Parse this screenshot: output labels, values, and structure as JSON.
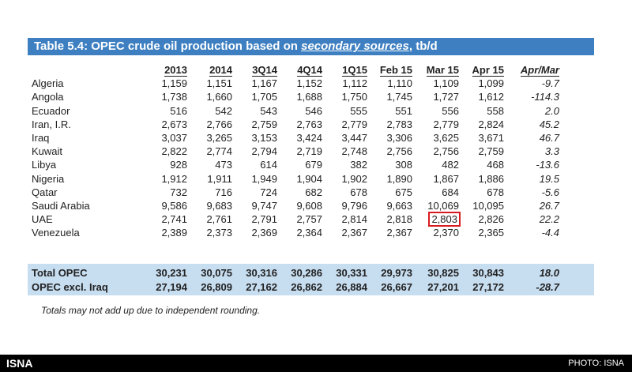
{
  "table": {
    "title_prefix": "Table 5.4: OPEC crude oil production based on ",
    "title_emphasis": "secondary sources",
    "title_suffix": ", tb/d",
    "columns": [
      "2013",
      "2014",
      "3Q14",
      "4Q14",
      "1Q15",
      "Feb 15",
      "Mar 15",
      "Apr 15",
      "Apr/Mar"
    ],
    "rows": [
      {
        "country": "Algeria",
        "values": [
          "1,159",
          "1,151",
          "1,167",
          "1,152",
          "1,112",
          "1,110",
          "1,109",
          "1,099"
        ],
        "change": "-9.7"
      },
      {
        "country": "Angola",
        "values": [
          "1,738",
          "1,660",
          "1,705",
          "1,688",
          "1,750",
          "1,745",
          "1,727",
          "1,612"
        ],
        "change": "-114.3"
      },
      {
        "country": "Ecuador",
        "values": [
          "516",
          "542",
          "543",
          "546",
          "555",
          "551",
          "556",
          "558"
        ],
        "change": "2.0"
      },
      {
        "country": "Iran, I.R.",
        "values": [
          "2,673",
          "2,766",
          "2,759",
          "2,763",
          "2,779",
          "2,783",
          "2,779",
          "2,824"
        ],
        "change": "45.2"
      },
      {
        "country": "Iraq",
        "values": [
          "3,037",
          "3,265",
          "3,153",
          "3,424",
          "3,447",
          "3,306",
          "3,625",
          "3,671"
        ],
        "change": "46.7"
      },
      {
        "country": "Kuwait",
        "values": [
          "2,822",
          "2,774",
          "2,794",
          "2,719",
          "2,748",
          "2,756",
          "2,756",
          "2,759"
        ],
        "change": "3.3"
      },
      {
        "country": "Libya",
        "values": [
          "928",
          "473",
          "614",
          "679",
          "382",
          "308",
          "482",
          "468"
        ],
        "change": "-13.6"
      },
      {
        "country": "Nigeria",
        "values": [
          "1,912",
          "1,911",
          "1,949",
          "1,904",
          "1,902",
          "1,890",
          "1,867",
          "1,886"
        ],
        "change": "19.5"
      },
      {
        "country": "Qatar",
        "values": [
          "732",
          "716",
          "724",
          "682",
          "678",
          "675",
          "684",
          "678"
        ],
        "change": "-5.6"
      },
      {
        "country": "Saudi Arabia",
        "values": [
          "9,586",
          "9,683",
          "9,747",
          "9,608",
          "9,796",
          "9,663",
          "10,069",
          "10,095"
        ],
        "change": "26.7"
      },
      {
        "country": "UAE",
        "values": [
          "2,741",
          "2,761",
          "2,791",
          "2,757",
          "2,814",
          "2,818",
          "2,803",
          "2,826"
        ],
        "change": "22.2"
      },
      {
        "country": "Venezuela",
        "values": [
          "2,389",
          "2,373",
          "2,369",
          "2,364",
          "2,367",
          "2,367",
          "2,370",
          "2,365"
        ],
        "change": "-4.4"
      }
    ],
    "totals": [
      {
        "label": "Total  OPEC",
        "values": [
          "30,231",
          "30,075",
          "30,316",
          "30,286",
          "30,331",
          "29,973",
          "30,825",
          "30,843"
        ],
        "change": "18.0"
      },
      {
        "label": "OPEC excl. Iraq",
        "values": [
          "27,194",
          "26,809",
          "27,162",
          "26,862",
          "26,884",
          "26,667",
          "27,201",
          "27,172"
        ],
        "change": "-28.7"
      }
    ],
    "note": "Totals may not add up due to independent rounding.",
    "highlighted_cell": {
      "country": "UAE",
      "column": "Mar 15",
      "value": "2,803"
    }
  },
  "footer": {
    "brand": "ISNA",
    "credit": "PHOTO: ISNA"
  },
  "colors": {
    "title_bar": "#3d7fc1",
    "totals_bg": "#c7ddf0",
    "highlight": "#d81b20",
    "footer_bg": "#000000"
  }
}
